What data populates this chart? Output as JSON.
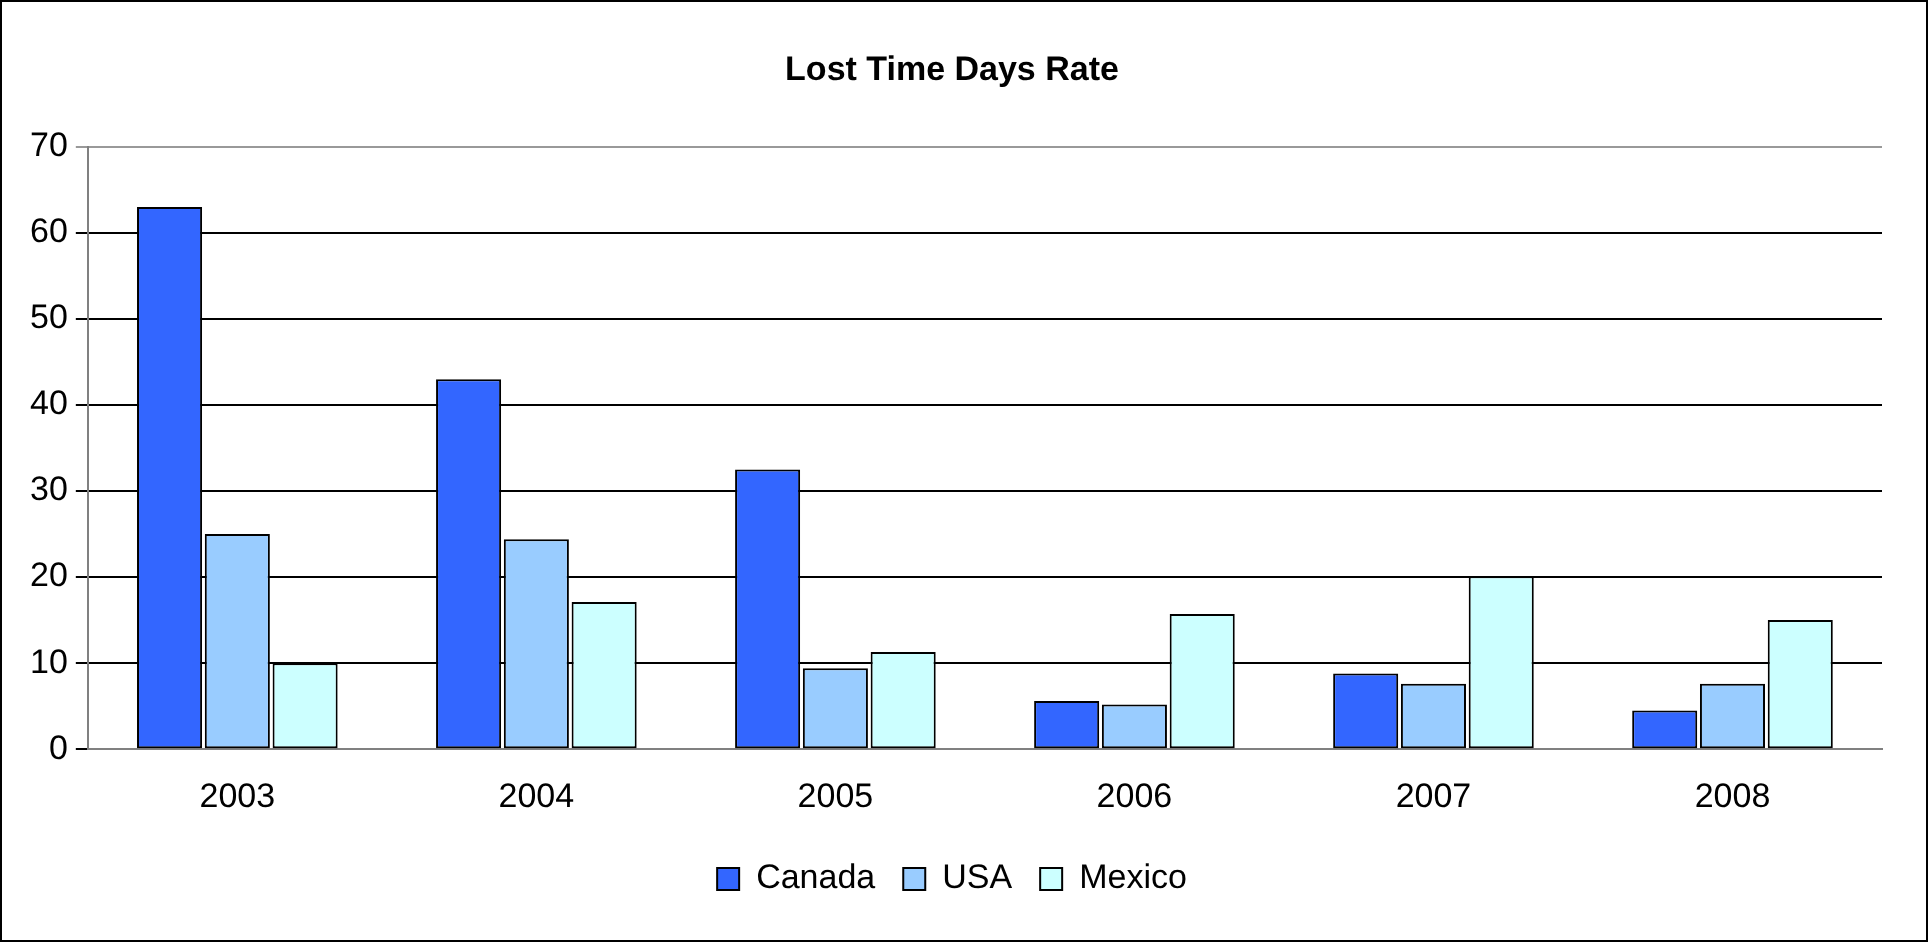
{
  "chart_data": {
    "type": "bar",
    "title": "Lost Time Days Rate",
    "categories": [
      "2003",
      "2004",
      "2005",
      "2006",
      "2007",
      "2008"
    ],
    "series": [
      {
        "name": "Canada",
        "color": "#3366ff",
        "values": [
          63,
          43,
          32.5,
          5.6,
          8.8,
          4.5
        ]
      },
      {
        "name": "USA",
        "color": "#99ccff",
        "values": [
          25,
          24.4,
          9.4,
          5.2,
          7.6,
          7.6
        ]
      },
      {
        "name": "Mexico",
        "color": "#ccffff",
        "values": [
          10,
          17.1,
          11.3,
          15.7,
          20.1,
          15
        ]
      }
    ],
    "ylim": [
      0,
      70
    ],
    "yticks": [
      0,
      10,
      20,
      30,
      40,
      50,
      60,
      70
    ],
    "grid": "y",
    "legend": "bottom"
  }
}
